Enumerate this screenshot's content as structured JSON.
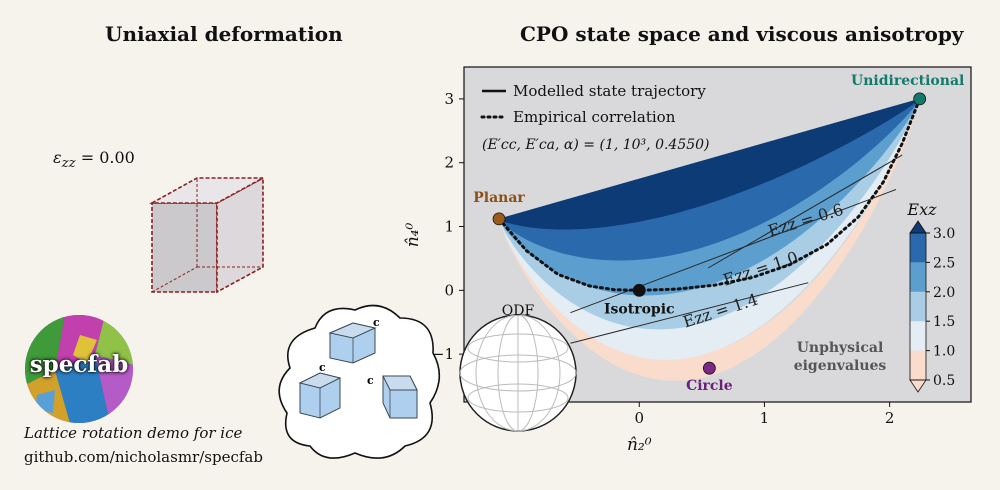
{
  "left_panel": {
    "title": "Uniaxial deformation",
    "strain_symbol": "ε",
    "strain_subscript": "zz",
    "strain_value": "= 0.00",
    "logo_text": "specfab",
    "caption_line1": "Lattice rotation demo for ice",
    "caption_line2": "github.com/nicholasmr/specfab",
    "crystal_axis_label": "c"
  },
  "right_panel": {
    "title": "CPO state space and viscous anisotropy",
    "odf_label": "ODF",
    "unphysical_label_line1": "Unphysical",
    "unphysical_label_line2": "eigenvalues"
  },
  "chart_data": {
    "type": "heatmap",
    "title": "CPO state space and viscous anisotropy",
    "xlabel": "n̂₂⁰",
    "ylabel": "n̂₄⁰",
    "xlim": [
      -1.4,
      2.65
    ],
    "ylim": [
      -1.75,
      3.5
    ],
    "xticks": [
      0,
      1,
      2
    ],
    "yticks": [
      -1,
      0,
      1,
      2,
      3
    ],
    "legend": {
      "placement": "top-left",
      "entries": [
        "Modelled state trajectory",
        "Empirical correlation"
      ],
      "params": "(E′cc, E′ca, α) = (1, 10³, 0.4550)"
    },
    "colorbar": {
      "label": "Exz",
      "ticks": [
        0.5,
        1.0,
        1.5,
        2.0,
        2.5,
        3.0
      ],
      "bins": [
        {
          "from": 0.5,
          "to": 1.0,
          "color": "#f9dccc"
        },
        {
          "from": 1.0,
          "to": 1.5,
          "color": "#e4ecf4"
        },
        {
          "from": 1.5,
          "to": 2.0,
          "color": "#a9cde4"
        },
        {
          "from": 2.0,
          "to": 2.5,
          "color": "#5c9fce"
        },
        {
          "from": 2.5,
          "to": 3.0,
          "color": "#2a6aac"
        },
        {
          "from": 3.0,
          "to": 3.5,
          "color": "#0d3b75"
        }
      ]
    },
    "contours": [
      {
        "label": "Ezz = 0.6"
      },
      {
        "label": "Ezz = 1.0"
      },
      {
        "label": "Ezz = 1.4"
      }
    ],
    "points": [
      {
        "name": "Unidirectional",
        "x": 2.24,
        "y": 3.0,
        "color": "#127a6a"
      },
      {
        "name": "Planar",
        "x": -1.12,
        "y": 1.12,
        "color": "#9a5a1a"
      },
      {
        "name": "Isotropic",
        "x": 0.0,
        "y": 0.0,
        "color": "#111111"
      },
      {
        "name": "Circle",
        "x": 0.56,
        "y": -1.22,
        "color": "#7a2a86"
      }
    ],
    "empirical_correlation": {
      "x": [
        -1.12,
        -0.9,
        -0.65,
        -0.4,
        -0.2,
        0.0,
        0.3,
        0.6,
        0.9,
        1.2,
        1.5,
        1.75,
        1.95,
        2.1,
        2.24
      ],
      "y": [
        1.12,
        0.62,
        0.25,
        0.07,
        0.01,
        0.0,
        0.02,
        0.08,
        0.2,
        0.4,
        0.72,
        1.15,
        1.7,
        2.3,
        3.0
      ]
    }
  }
}
